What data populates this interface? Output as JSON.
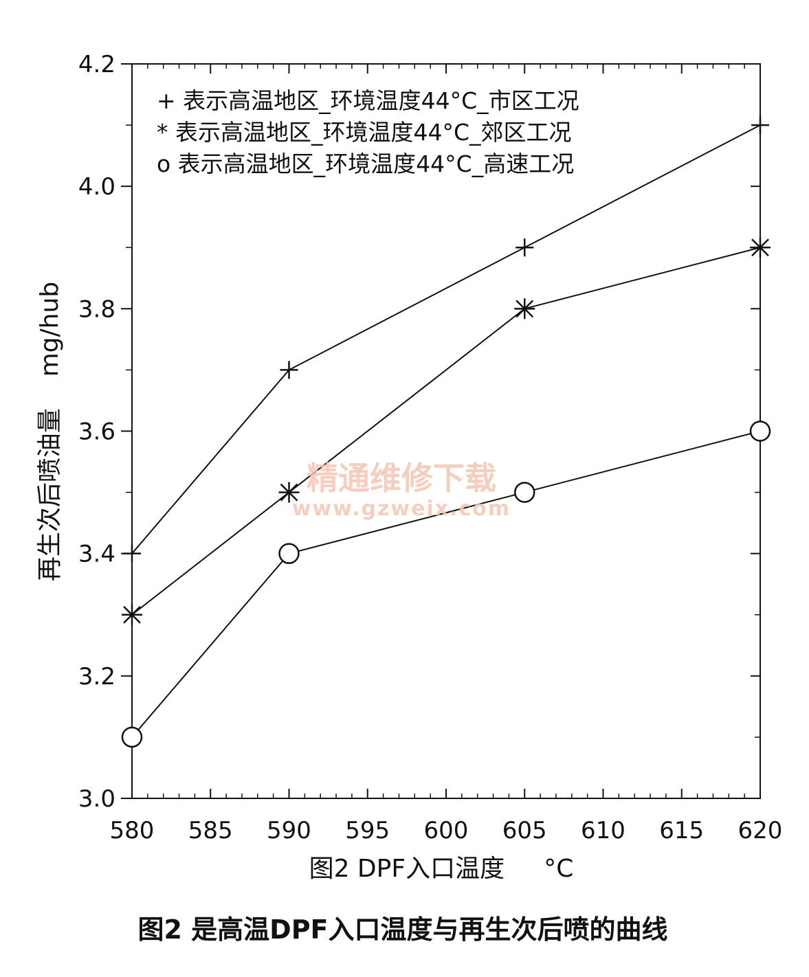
{
  "chart_data": {
    "type": "line",
    "x": [
      580,
      590,
      605,
      620
    ],
    "series": [
      {
        "name": "+ 表示高温地区_环境温度44°C_市区工况",
        "marker": "plus",
        "values": [
          3.4,
          3.7,
          3.9,
          4.1
        ]
      },
      {
        "name": "* 表示高温地区_环境温度44°C_郊区工况",
        "marker": "asterisk",
        "values": [
          3.3,
          3.5,
          3.8,
          3.9
        ]
      },
      {
        "name": "o 表示高温地区_环境温度44°C_高速工况",
        "marker": "circle",
        "values": [
          3.1,
          3.4,
          3.5,
          3.6
        ]
      }
    ],
    "xlim": [
      580,
      620
    ],
    "ylim": [
      3.0,
      4.2
    ],
    "x_ticks": [
      "580",
      "585",
      "590",
      "595",
      "600",
      "605",
      "610",
      "615",
      "620"
    ],
    "y_ticks": [
      "3.0",
      "3.2",
      "3.4",
      "3.6",
      "3.8",
      "4.0",
      "4.2"
    ],
    "xlabel": "图2 DPF入口温度     °C",
    "ylabel": "再生次后喷油量    mg/hub",
    "legend_position": "top-left",
    "grid": false,
    "line_color": "#111111"
  },
  "caption": "图2 是高温DPF入口温度与再生次后喷的曲线",
  "watermark": {
    "text_cn": "精通维修下载",
    "url": "www.gzweix.com",
    "color": "#f3c6b3"
  }
}
